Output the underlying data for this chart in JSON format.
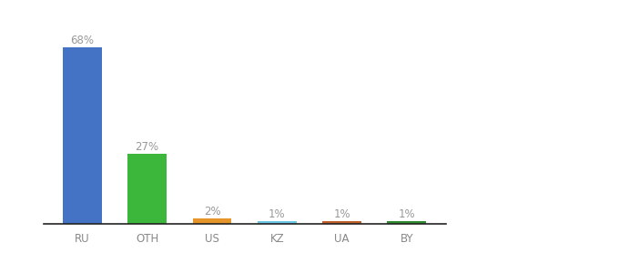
{
  "categories": [
    "RU",
    "OTH",
    "US",
    "KZ",
    "UA",
    "BY"
  ],
  "values": [
    68,
    27,
    2,
    1,
    1,
    1
  ],
  "labels": [
    "68%",
    "27%",
    "2%",
    "1%",
    "1%",
    "1%"
  ],
  "bar_colors": [
    "#4472C4",
    "#3CB73C",
    "#E6952A",
    "#6EC6E6",
    "#C0612B",
    "#2E8B2E"
  ],
  "ylim": [
    0,
    78
  ],
  "background_color": "#ffffff",
  "label_color": "#999999",
  "label_fontsize": 8.5,
  "tick_fontsize": 8.5,
  "tick_color": "#888888",
  "bar_width": 0.6,
  "bottom_spine_color": "#222222"
}
